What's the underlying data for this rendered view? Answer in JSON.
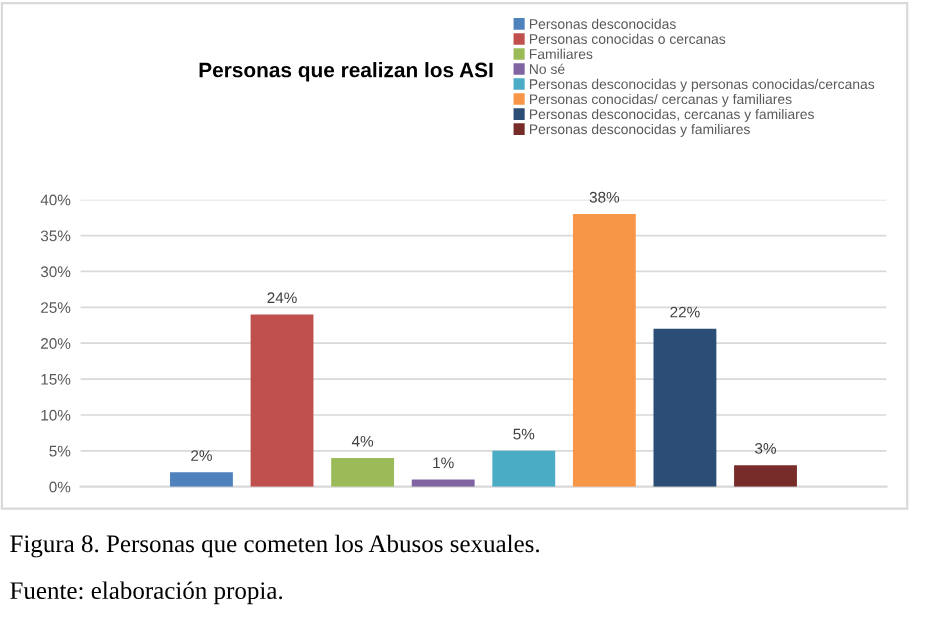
{
  "chart_data": {
    "type": "bar",
    "title": "Personas que realizan los ASI",
    "categories": [
      null
    ],
    "series": [
      {
        "name": "Personas desconocidas",
        "color": "#4f81bd",
        "values": [
          2
        ],
        "value_labels": [
          "2%"
        ]
      },
      {
        "name": "Personas conocidas o cercanas",
        "color": "#c0504d",
        "values": [
          24
        ],
        "value_labels": [
          "24%"
        ]
      },
      {
        "name": "Familiares",
        "color": "#9bbb59",
        "values": [
          4
        ],
        "value_labels": [
          "4%"
        ]
      },
      {
        "name": "No sé",
        "color": "#8064a2",
        "values": [
          1
        ],
        "value_labels": [
          "1%"
        ]
      },
      {
        "name": "Personas desconocidas y personas conocidas/cercanas",
        "color": "#4bacc6",
        "values": [
          5
        ],
        "value_labels": [
          "5%"
        ]
      },
      {
        "name": "Personas conocidas/ cercanas y familiares",
        "color": "#f79646",
        "values": [
          38
        ],
        "value_labels": [
          "38%"
        ]
      },
      {
        "name": "Personas desconocidas, cercanas y familiares",
        "color": "#2c4d75",
        "values": [
          22
        ],
        "value_labels": [
          "22%"
        ]
      },
      {
        "name": "Personas desconocidas y familiares",
        "color": "#772c2a",
        "values": [
          3
        ],
        "value_labels": [
          "3%"
        ]
      }
    ],
    "ylim": [
      0,
      40
    ],
    "yticks": [
      {
        "value": 0,
        "label": "0%"
      },
      {
        "value": 5,
        "label": "5%"
      },
      {
        "value": 10,
        "label": "10%"
      },
      {
        "value": 15,
        "label": "15%"
      },
      {
        "value": 20,
        "label": "20%"
      },
      {
        "value": 25,
        "label": "25%"
      },
      {
        "value": 30,
        "label": "30%"
      },
      {
        "value": 35,
        "label": "35%"
      },
      {
        "value": 40,
        "label": "40%"
      }
    ],
    "grid": "y",
    "legend": "top right",
    "annotations": [
      "Figura 8. Personas que cometen los Abusos sexuales.",
      "Fuente: elaboración propia."
    ]
  }
}
